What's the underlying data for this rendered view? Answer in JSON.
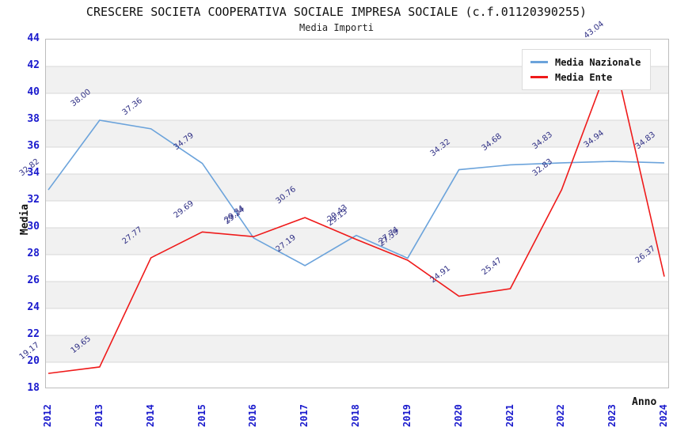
{
  "header": {
    "title": "CRESCERE SOCIETA COOPERATIVA SOCIALE IMPRESA SOCIALE (c.f.01120390255)",
    "subtitle": "Media Importi"
  },
  "chart_data": {
    "type": "line",
    "x": [
      2012,
      2013,
      2014,
      2015,
      2016,
      2017,
      2018,
      2019,
      2020,
      2021,
      2022,
      2023,
      2024
    ],
    "series": [
      {
        "name": "Media Nazionale",
        "color": "#6ba3db",
        "values": [
          32.82,
          38.0,
          37.36,
          34.79,
          29.24,
          27.19,
          29.43,
          27.74,
          34.32,
          34.68,
          34.83,
          34.94,
          34.83
        ]
      },
      {
        "name": "Media Ente",
        "color": "#ef1a1a",
        "values": [
          19.17,
          19.65,
          27.77,
          29.69,
          29.34,
          30.76,
          29.13,
          27.59,
          24.91,
          25.47,
          32.83,
          43.04,
          26.37
        ]
      }
    ],
    "xlabel": "Anno",
    "ylabel": "Media",
    "ylim": [
      18,
      44
    ],
    "ytick_step": 2,
    "grid": "horizontal-bands",
    "band_color": "#f1f1f1",
    "gridline_color": "#d8d8d8",
    "tick_color": "#1a1acd",
    "data_label_color": "#303085",
    "legend_position": "top-right",
    "data_label_decimals": 2
  }
}
